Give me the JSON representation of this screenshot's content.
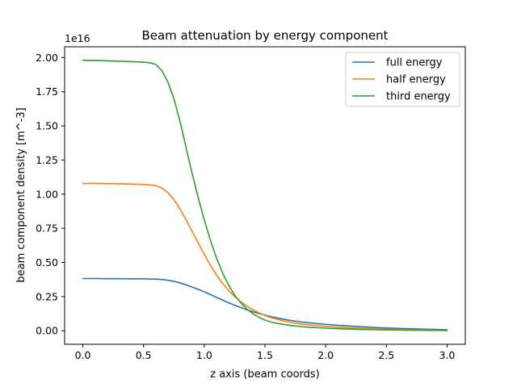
{
  "chart_data": {
    "type": "line",
    "title": "Beam attenuation by energy component",
    "xlabel": "z axis (beam coords)",
    "ylabel": "beam component density [m^-3]",
    "offset_text": "1e16",
    "xlim": [
      -0.15,
      3.15
    ],
    "ylim": [
      -0.099,
      2.079
    ],
    "xticks": [
      0.0,
      0.5,
      1.0,
      1.5,
      2.0,
      2.5,
      3.0
    ],
    "xtick_labels": [
      "0.0",
      "0.5",
      "1.0",
      "1.5",
      "2.0",
      "2.5",
      "3.0"
    ],
    "yticks": [
      0.0,
      0.25,
      0.5,
      0.75,
      1.0,
      1.25,
      1.5,
      1.75,
      2.0
    ],
    "ytick_labels": [
      "0.00",
      "0.25",
      "0.50",
      "0.75",
      "1.00",
      "1.25",
      "1.50",
      "1.75",
      "2.00"
    ],
    "grid": false,
    "legend_position": "top-right",
    "x": [
      0.0,
      0.1,
      0.2,
      0.3,
      0.4,
      0.5,
      0.55,
      0.6,
      0.65,
      0.7,
      0.75,
      0.8,
      0.85,
      0.9,
      0.95,
      1.0,
      1.05,
      1.1,
      1.15,
      1.2,
      1.25,
      1.3,
      1.35,
      1.4,
      1.45,
      1.5,
      1.55,
      1.6,
      1.7,
      1.8,
      1.9,
      2.0,
      2.1,
      2.2,
      2.3,
      2.4,
      2.5,
      2.6,
      2.7,
      2.8,
      2.9,
      3.0
    ],
    "series": [
      {
        "name": "full energy",
        "color": "#1f77b4",
        "values": [
          0.382,
          0.382,
          0.381,
          0.381,
          0.38,
          0.38,
          0.379,
          0.378,
          0.375,
          0.37,
          0.362,
          0.35,
          0.336,
          0.32,
          0.303,
          0.285,
          0.265,
          0.245,
          0.225,
          0.205,
          0.187,
          0.17,
          0.154,
          0.139,
          0.126,
          0.115,
          0.104,
          0.094,
          0.077,
          0.064,
          0.055,
          0.047,
          0.04,
          0.034,
          0.029,
          0.024,
          0.02,
          0.017,
          0.014,
          0.012,
          0.01,
          0.008
        ]
      },
      {
        "name": "half energy",
        "color": "#ff7f0e",
        "values": [
          1.078,
          1.078,
          1.077,
          1.076,
          1.074,
          1.071,
          1.068,
          1.062,
          1.045,
          1.012,
          0.96,
          0.892,
          0.812,
          0.728,
          0.643,
          0.56,
          0.48,
          0.41,
          0.348,
          0.295,
          0.25,
          0.213,
          0.181,
          0.154,
          0.131,
          0.112,
          0.096,
          0.083,
          0.063,
          0.049,
          0.04,
          0.033,
          0.026,
          0.021,
          0.017,
          0.014,
          0.011,
          0.009,
          0.007,
          0.006,
          0.005,
          0.004
        ]
      },
      {
        "name": "third energy",
        "color": "#2ca02c",
        "values": [
          1.98,
          1.978,
          1.976,
          1.973,
          1.97,
          1.966,
          1.962,
          1.95,
          1.905,
          1.822,
          1.7,
          1.535,
          1.343,
          1.152,
          0.975,
          0.812,
          0.665,
          0.535,
          0.425,
          0.335,
          0.262,
          0.205,
          0.16,
          0.125,
          0.098,
          0.078,
          0.064,
          0.054,
          0.04,
          0.03,
          0.024,
          0.019,
          0.015,
          0.012,
          0.009,
          0.008,
          0.006,
          0.005,
          0.004,
          0.003,
          0.003,
          0.002
        ]
      }
    ]
  }
}
